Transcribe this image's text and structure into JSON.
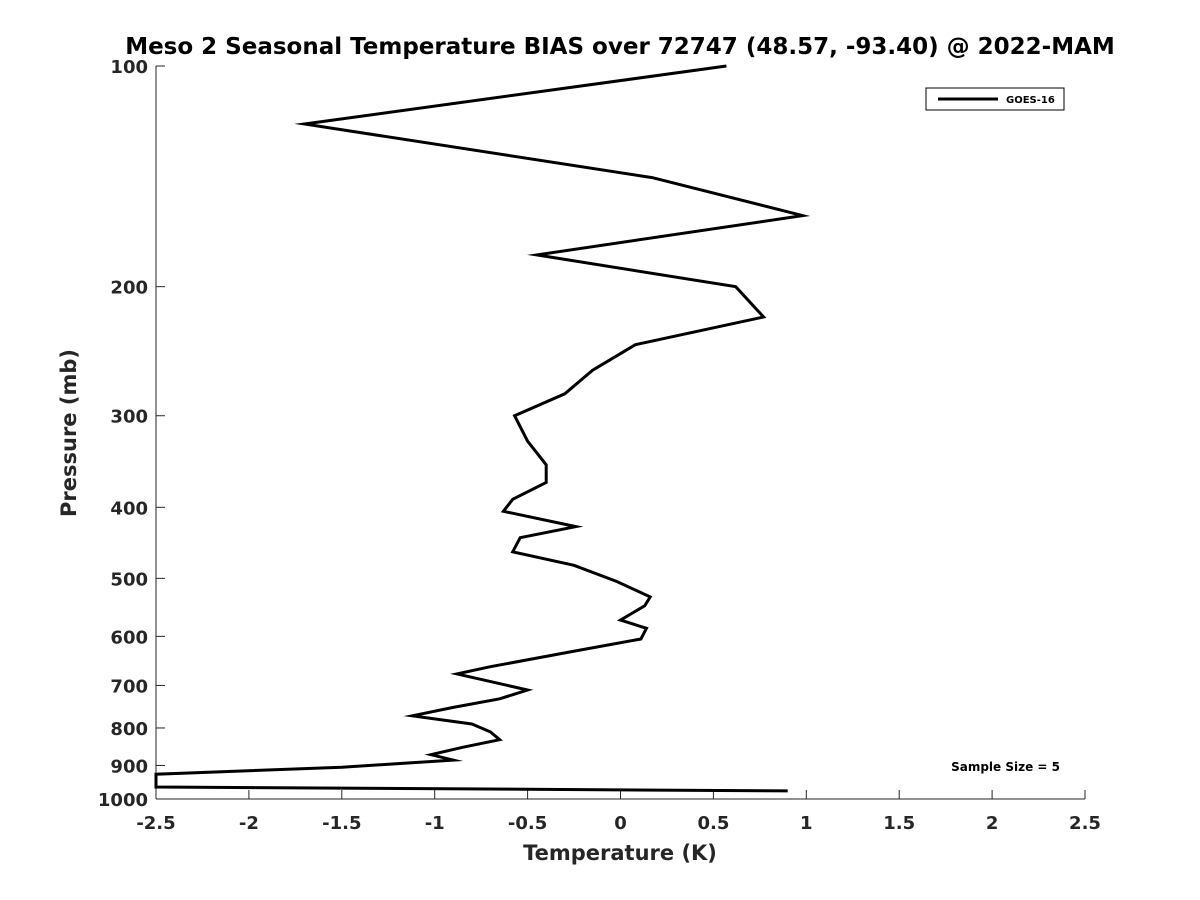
{
  "chart_data": {
    "type": "line",
    "title": "Meso 2 Seasonal Temperature BIAS over 72747 (48.57, -93.40) @ 2022-MAM",
    "xlabel": "Temperature (K)",
    "ylabel": "Pressure (mb)",
    "xlim": [
      -2.5,
      2.5
    ],
    "ylim": [
      100,
      1000
    ],
    "y_scale": "log",
    "y_reversed": true,
    "grid": false,
    "x_ticks": [
      -2.5,
      -2,
      -1.5,
      -1,
      -0.5,
      0,
      0.5,
      1,
      1.5,
      2,
      2.5
    ],
    "x_tick_labels": [
      "-2.5",
      "-2",
      "-1.5",
      "-1",
      "-0.5",
      "0",
      "0.5",
      "1",
      "1.5",
      "2",
      "2.5"
    ],
    "y_ticks": [
      100,
      200,
      300,
      400,
      500,
      600,
      700,
      800,
      900,
      1000
    ],
    "y_tick_labels": [
      "100",
      "200",
      "300",
      "400",
      "500",
      "600",
      "700",
      "800",
      "900",
      "1000"
    ],
    "legend_position": "top-right",
    "series": [
      {
        "name": "GOES-16",
        "color": "#000000",
        "points": [
          {
            "x": 0.57,
            "p": 100
          },
          {
            "x": -1.7,
            "p": 120
          },
          {
            "x": 0.17,
            "p": 142
          },
          {
            "x": 0.98,
            "p": 160
          },
          {
            "x": -0.45,
            "p": 181
          },
          {
            "x": 0.62,
            "p": 200
          },
          {
            "x": 0.77,
            "p": 220
          },
          {
            "x": 0.08,
            "p": 240
          },
          {
            "x": -0.15,
            "p": 260
          },
          {
            "x": -0.3,
            "p": 280
          },
          {
            "x": -0.57,
            "p": 300
          },
          {
            "x": -0.5,
            "p": 325
          },
          {
            "x": -0.4,
            "p": 350
          },
          {
            "x": -0.4,
            "p": 370
          },
          {
            "x": -0.58,
            "p": 390
          },
          {
            "x": -0.63,
            "p": 405
          },
          {
            "x": -0.24,
            "p": 425
          },
          {
            "x": -0.54,
            "p": 440
          },
          {
            "x": -0.58,
            "p": 460
          },
          {
            "x": -0.25,
            "p": 480
          },
          {
            "x": -0.02,
            "p": 505
          },
          {
            "x": 0.16,
            "p": 530
          },
          {
            "x": 0.13,
            "p": 545
          },
          {
            "x": 0.0,
            "p": 570
          },
          {
            "x": 0.14,
            "p": 585
          },
          {
            "x": 0.11,
            "p": 605
          },
          {
            "x": -0.27,
            "p": 630
          },
          {
            "x": -0.7,
            "p": 660
          },
          {
            "x": -0.88,
            "p": 675
          },
          {
            "x": -0.5,
            "p": 710
          },
          {
            "x": -0.65,
            "p": 730
          },
          {
            "x": -0.9,
            "p": 750
          },
          {
            "x": -1.12,
            "p": 770
          },
          {
            "x": -0.8,
            "p": 790
          },
          {
            "x": -0.7,
            "p": 810
          },
          {
            "x": -0.65,
            "p": 830
          },
          {
            "x": -0.85,
            "p": 850
          },
          {
            "x": -1.02,
            "p": 870
          },
          {
            "x": -0.9,
            "p": 885
          },
          {
            "x": -1.5,
            "p": 905
          },
          {
            "x": -2.5,
            "p": 925
          },
          {
            "x": -2.5,
            "p": 963
          },
          {
            "x": 0.9,
            "p": 975
          }
        ]
      }
    ],
    "annotations": [
      "Sample Size = 5"
    ]
  }
}
